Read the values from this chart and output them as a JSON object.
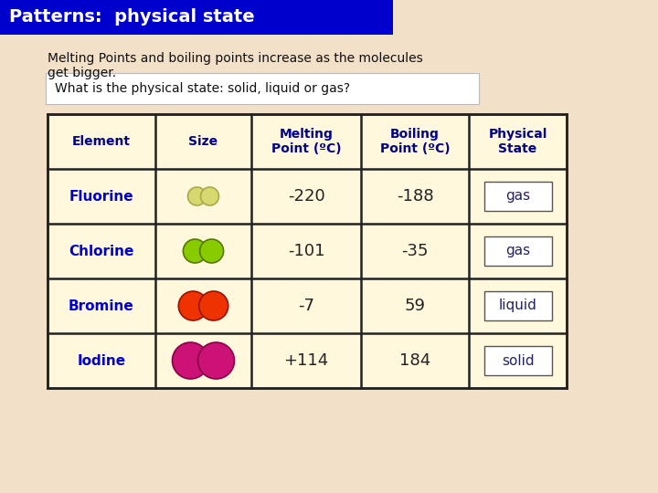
{
  "title": "Patterns:  physical state",
  "title_bg": "#0000CC",
  "title_fg": "#FFFFFF",
  "subtitle": "Melting Points and boiling points increase as the molecules\nget bigger.",
  "question": "What is the physical state: solid, liquid or gas?",
  "bg_color": "#F2E0C8",
  "table_header_bg": "#FFF8DC",
  "table_row_bg": "#FFF8DC",
  "table_border": "#222222",
  "headers": [
    "Element",
    "Size",
    "Melting\nPoint (ºC)",
    "Boiling\nPoint (ºC)",
    "Physical\nState"
  ],
  "rows": [
    {
      "element": "Fluorine",
      "melting": "-220",
      "boiling": "-188",
      "state": "gas",
      "circle_color": "#D8D870",
      "circle_size": 10,
      "outline": "#AAAA44"
    },
    {
      "element": "Chlorine",
      "melting": "-101",
      "boiling": "-35",
      "state": "gas",
      "circle_color": "#88CC00",
      "circle_size": 13,
      "outline": "#557700"
    },
    {
      "element": "Bromine",
      "melting": "-7",
      "boiling": "59",
      "state": "liquid",
      "circle_color": "#EE3300",
      "circle_size": 16,
      "outline": "#991100"
    },
    {
      "element": "Iodine",
      "melting": "+114",
      "boiling": "184",
      "state": "solid",
      "circle_color": "#CC1177",
      "circle_size": 20,
      "outline": "#880044"
    }
  ],
  "element_color": "#0000CC",
  "header_color": "#00008B",
  "data_color": "#222222",
  "state_color": "#222266"
}
